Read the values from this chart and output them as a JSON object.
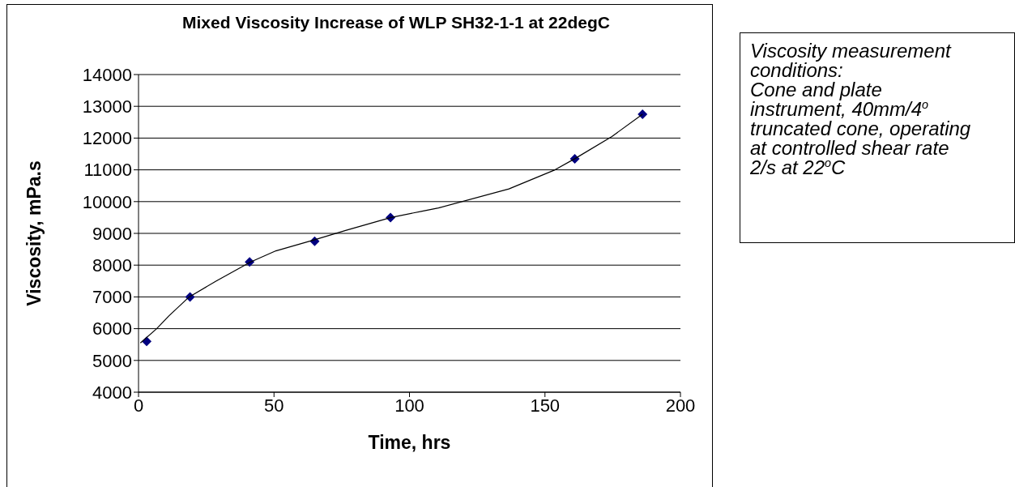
{
  "chart_data": {
    "type": "scatter",
    "title": "Mixed Viscosity Increase of WLP SH32-1-1 at 22degC",
    "xlabel": "Time, hrs",
    "ylabel": "Viscosity, mPa.s",
    "xlim": [
      0,
      200
    ],
    "xticks": [
      0,
      50,
      100,
      150,
      200
    ],
    "ylim": [
      4000,
      14000
    ],
    "yticks": [
      4000,
      5000,
      6000,
      7000,
      8000,
      9000,
      10000,
      11000,
      12000,
      13000,
      14000
    ],
    "grid": "y",
    "series": [
      {
        "color": "#000080",
        "marker": "diamond",
        "x": [
          3,
          19,
          41,
          65,
          93,
          161,
          186
        ],
        "values": [
          5600,
          7000,
          8100,
          8750,
          9500,
          11350,
          12750
        ]
      },
      {
        "type": "line",
        "color": "#000000",
        "marker": "none",
        "line_style": "solid",
        "x": [
          0.7,
          6.7,
          11.2,
          18.7,
          28.7,
          41.4,
          50.7,
          65,
          76.7,
          93.2,
          104.7,
          110.7,
          136.7,
          153.7,
          161,
          174.7,
          186
        ],
        "values": [
          5550,
          6000,
          6400,
          7000,
          7500,
          8100,
          8450,
          8800,
          9100,
          9500,
          9700,
          9800,
          10400,
          11000,
          11350,
          12050,
          12750
        ]
      }
    ],
    "annotations": [
      "Viscosity measurement\nconditions:\nCone and plate\ninstrument, 40mm/4$^{o}$\ntruncated cone, operating\nat controlled shear rate\n2/s at 22$^{o}$C"
    ]
  }
}
